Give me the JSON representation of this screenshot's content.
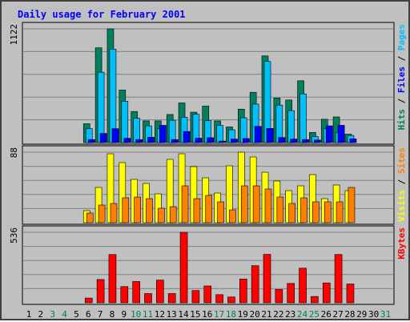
{
  "chart_data": {
    "type": "bar",
    "title": "Daily usage for February 2001",
    "days": [
      "1",
      "2",
      "3",
      "4",
      "5",
      "6",
      "7",
      "8",
      "9",
      "10",
      "11",
      "12",
      "13",
      "14",
      "15",
      "16",
      "17",
      "18",
      "19",
      "20",
      "21",
      "22",
      "23",
      "24",
      "25",
      "26",
      "27",
      "28",
      "29",
      "30",
      "31"
    ],
    "weekend_days": [
      "3",
      "4",
      "10",
      "11",
      "17",
      "18",
      "24",
      "25",
      "31"
    ],
    "panels": [
      {
        "id": "hits",
        "max_label": "1122",
        "ymax": 1122,
        "labels": [
          {
            "text": "Hits",
            "color": "#00805c"
          },
          {
            "text": " / ",
            "color": "#000000"
          },
          {
            "text": "Files",
            "color": "#0000ff"
          },
          {
            "text": " / ",
            "color": "#000000"
          },
          {
            "text": "Pages",
            "color": "#00c0ff"
          }
        ],
        "series": [
          {
            "name": "Hits",
            "color": "#00805c",
            "values": [
              0,
              0,
              0,
              0,
              0,
              186,
              935,
              1122,
              518,
              307,
              214,
              214,
              277,
              391,
              300,
              360,
              214,
              154,
              330,
              496,
              855,
              440,
              420,
              610,
              100,
              230,
              253,
              83,
              0,
              0,
              0
            ]
          },
          {
            "name": "Pages",
            "color": "#00c0ff",
            "values": [
              0,
              0,
              0,
              0,
              0,
              138,
              694,
              922,
              408,
              240,
              165,
              136,
              220,
              250,
              280,
              216,
              170,
              126,
              245,
              380,
              800,
              370,
              315,
              480,
              60,
              138,
              100,
              70,
              0,
              0,
              0
            ]
          },
          {
            "name": "Files",
            "color": "#0000ff",
            "values": [
              0,
              0,
              0,
              0,
              0,
              30,
              90,
              137,
              42,
              30,
              53,
              170,
              30,
              110,
              43,
              48,
              15,
              35,
              40,
              160,
              140,
              50,
              35,
              30,
              25,
              165,
              170,
              37,
              0,
              0,
              0
            ]
          }
        ]
      },
      {
        "id": "visits",
        "max_label": "88",
        "ymax": 88,
        "labels": [
          {
            "text": "Visits",
            "color": "#ffff00"
          },
          {
            "text": " / ",
            "color": "#000000"
          },
          {
            "text": "Sites",
            "color": "#ff8000"
          }
        ],
        "series": [
          {
            "name": "Visits",
            "color": "#ffff00",
            "values": [
              0,
              0,
              0,
              0,
              0,
              15,
              44,
              86,
              75,
              54,
              49,
              36,
              79,
              86,
              70,
              56,
              37,
              71,
              88,
              82,
              63,
              52,
              40,
              46,
              60,
              30,
              47,
              40,
              0,
              0,
              0
            ]
          },
          {
            "name": "Sites",
            "color": "#ff8000",
            "values": [
              0,
              0,
              0,
              0,
              0,
              12,
              22,
              24,
              31,
              32,
              30,
              18,
              20,
              46,
              30,
              34,
              26,
              16,
              46,
              46,
              42,
              32,
              24,
              31,
              26,
              26,
              26,
              44,
              0,
              0,
              0
            ]
          }
        ]
      },
      {
        "id": "kbytes",
        "max_label": "536",
        "ymax": 536,
        "labels": [
          {
            "text": "KBytes",
            "color": "#ff0000"
          }
        ],
        "series": [
          {
            "name": "KBytes",
            "color": "#ff0000",
            "values": [
              0,
              0,
              0,
              0,
              0,
              36,
              177,
              367,
              123,
              162,
              70,
              173,
              70,
              536,
              93,
              128,
              62,
              44,
              181,
              282,
              368,
              101,
              147,
              263,
              48,
              151,
              367,
              143,
              0,
              0,
              0
            ]
          }
        ]
      }
    ]
  }
}
